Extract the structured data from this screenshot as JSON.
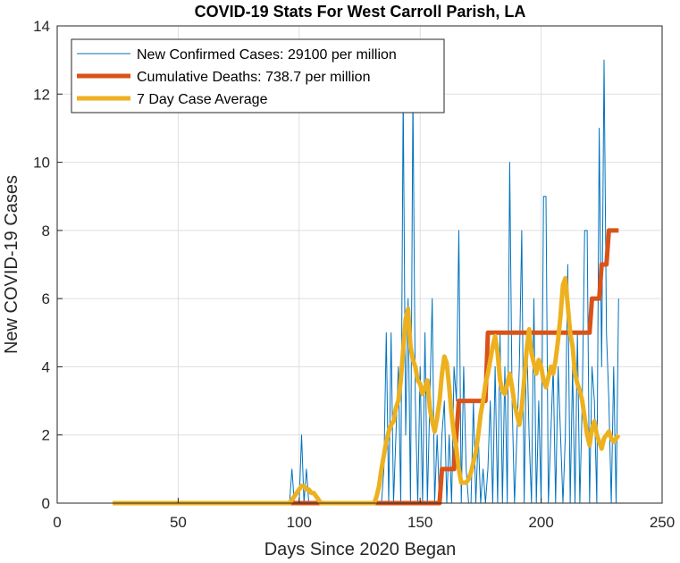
{
  "chart_data": {
    "type": "line",
    "title": "COVID-19 Stats For West Carroll Parish, LA",
    "xlabel": "Days Since 2020 Began",
    "ylabel": "New COVID-19 Cases",
    "xlim": [
      0,
      250
    ],
    "ylim": [
      0,
      14
    ],
    "xticks": [
      0,
      50,
      100,
      150,
      200,
      250
    ],
    "yticks": [
      0,
      2,
      4,
      6,
      8,
      10,
      12,
      14
    ],
    "grid": true,
    "legend_position": "top-left",
    "series": [
      {
        "name": "New Confirmed Cases: 29100 per million",
        "color": "#0072BD",
        "style": "thin",
        "x": [
          23,
          96,
          97,
          98,
          99,
          100,
          101,
          102,
          103,
          104,
          105,
          106,
          107,
          108,
          109,
          110,
          130,
          131,
          132,
          133,
          134,
          135,
          136,
          137,
          138,
          139,
          140,
          141,
          142,
          143,
          144,
          145,
          146,
          147,
          148,
          149,
          150,
          151,
          152,
          153,
          154,
          155,
          156,
          157,
          158,
          159,
          160,
          161,
          162,
          163,
          164,
          165,
          166,
          167,
          168,
          169,
          170,
          171,
          172,
          173,
          174,
          175,
          176,
          177,
          178,
          179,
          180,
          181,
          182,
          183,
          184,
          185,
          186,
          187,
          188,
          189,
          190,
          191,
          192,
          193,
          194,
          195,
          196,
          197,
          198,
          199,
          200,
          201,
          202,
          203,
          204,
          205,
          206,
          207,
          208,
          209,
          210,
          211,
          212,
          213,
          214,
          215,
          216,
          217,
          218,
          219,
          220,
          221,
          222,
          223,
          224,
          225,
          226,
          227,
          228,
          229,
          230,
          231,
          232
        ],
        "values": [
          0,
          0,
          1,
          0,
          0,
          0,
          2,
          0,
          1,
          0,
          0,
          0,
          0,
          0,
          0,
          0,
          0,
          0,
          0,
          0,
          0,
          1,
          5,
          0,
          5,
          0,
          2,
          4,
          0,
          12,
          2,
          6,
          0,
          12,
          3,
          0,
          4,
          0,
          5,
          0,
          3,
          6,
          0,
          2,
          0,
          2,
          3,
          0,
          2,
          0,
          4,
          3,
          8,
          0,
          4,
          1,
          0,
          0,
          3,
          0,
          2,
          0,
          1,
          0,
          1,
          3,
          0,
          4,
          0,
          5,
          0,
          4,
          0,
          10,
          3,
          0,
          2,
          4,
          8,
          0,
          5,
          2,
          0,
          6,
          0,
          3,
          0,
          9,
          9,
          0,
          2,
          4,
          0,
          4,
          2,
          0,
          2,
          7,
          0,
          4,
          0,
          5,
          0,
          3,
          8,
          8,
          0,
          4,
          3,
          0,
          11,
          4,
          13,
          5,
          3,
          0,
          4,
          0,
          6
        ]
      },
      {
        "name": "Cumulative Deaths: 738.7 per million",
        "color": "#D95319",
        "style": "thick",
        "x": [
          23,
          158,
          159,
          164,
          165,
          166,
          167,
          168,
          177,
          178,
          179,
          180,
          181,
          182,
          216,
          217,
          218,
          219,
          220,
          221,
          222,
          223,
          224,
          225,
          226,
          227,
          228,
          229,
          230,
          231,
          232
        ],
        "values": [
          0,
          0,
          1,
          1,
          2,
          3,
          3,
          3,
          3,
          5,
          5,
          5,
          5,
          5,
          5,
          5,
          5,
          5,
          5,
          6,
          6,
          6,
          6,
          7,
          7,
          7,
          8,
          8,
          8,
          8,
          8
        ]
      },
      {
        "name": "7 Day Case Average",
        "color": "#EDB120",
        "style": "thick",
        "x": [
          23,
          96,
          97,
          98,
          99,
          100,
          101,
          102,
          103,
          104,
          105,
          106,
          107,
          108,
          109,
          110,
          131,
          132,
          133,
          134,
          135,
          136,
          137,
          138,
          139,
          140,
          141,
          142,
          143,
          144,
          145,
          146,
          147,
          148,
          149,
          150,
          151,
          152,
          153,
          154,
          155,
          156,
          157,
          158,
          159,
          160,
          161,
          162,
          163,
          164,
          165,
          166,
          167,
          168,
          169,
          170,
          171,
          172,
          173,
          174,
          175,
          176,
          177,
          178,
          179,
          180,
          181,
          182,
          183,
          184,
          185,
          186,
          187,
          188,
          189,
          190,
          191,
          192,
          193,
          194,
          195,
          196,
          197,
          198,
          199,
          200,
          201,
          202,
          203,
          204,
          205,
          206,
          207,
          208,
          209,
          210,
          211,
          212,
          213,
          214,
          215,
          216,
          217,
          218,
          219,
          220,
          221,
          222,
          223,
          224,
          225,
          226,
          227,
          228,
          229,
          230,
          231,
          232
        ],
        "values": [
          0,
          0,
          0.1,
          0.2,
          0.3,
          0.4,
          0.5,
          0.5,
          0.4,
          0.4,
          0.3,
          0.3,
          0.2,
          0.1,
          0,
          0,
          0,
          0.2,
          0.5,
          1.0,
          1.4,
          1.8,
          2.1,
          2.3,
          2.4,
          2.8,
          3.0,
          3.6,
          4.5,
          5.4,
          5.7,
          4.6,
          4.2,
          4.0,
          3.6,
          3.5,
          3.2,
          3.4,
          3.6,
          2.8,
          2.4,
          2.1,
          2.5,
          3.0,
          3.8,
          4.3,
          4.1,
          3.4,
          2.6,
          2.0,
          1.6,
          1.0,
          0.6,
          0.6,
          0.6,
          0.7,
          0.9,
          1.2,
          1.5,
          2.0,
          2.6,
          3.0,
          3.5,
          3.8,
          4.2,
          4.6,
          4.9,
          4.4,
          3.6,
          3.3,
          3.2,
          3.5,
          3.8,
          3.4,
          2.9,
          2.6,
          2.3,
          2.8,
          3.6,
          4.5,
          5.1,
          4.4,
          4.1,
          3.8,
          4.2,
          4.0,
          3.6,
          3.4,
          3.7,
          4.0,
          3.8,
          4.2,
          4.8,
          5.5,
          6.4,
          6.6,
          5.8,
          5.0,
          4.6,
          3.8,
          3.5,
          3.3,
          3.0,
          2.5,
          2.0,
          1.7,
          2.2,
          2.4,
          2.0,
          1.8,
          1.6,
          1.9,
          2.0,
          2.1,
          1.9,
          1.8,
          1.9,
          2.0
        ]
      }
    ]
  }
}
